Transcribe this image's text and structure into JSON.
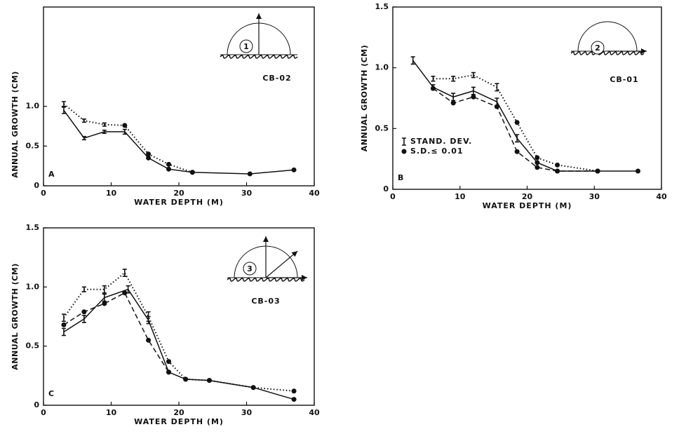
{
  "chart_data": [
    {
      "type": "line",
      "panel": "A",
      "site": "CB-02",
      "site_number": "1",
      "xlabel": "WATER DEPTH (M)",
      "ylabel": "ANNUAL GROWTH (CM)",
      "xlim": [
        0,
        40
      ],
      "xticks": [
        0,
        10,
        20,
        30,
        40
      ],
      "ylim": [
        0,
        2.25
      ],
      "yticks": [
        0,
        0.5,
        {
          "value": 1,
          "label": "1.0"
        }
      ],
      "series": [
        {
          "style": "dotted",
          "color": "#111111",
          "x": [
            3,
            6,
            9,
            12,
            15.5,
            18.5,
            22
          ],
          "values": [
            1.03,
            0.82,
            0.77,
            0.76,
            0.4,
            0.27,
            0.17
          ],
          "errors": [
            0.03,
            0.02,
            0.02,
            null,
            null,
            null,
            null
          ]
        },
        {
          "style": "solid",
          "color": "#111111",
          "x": [
            3,
            6,
            9,
            12,
            15.5,
            18.5,
            22,
            30.5,
            37
          ],
          "values": [
            0.95,
            0.6,
            0.68,
            0.68,
            0.35,
            0.21,
            0.17,
            0.15,
            0.2
          ],
          "errors": [
            0.04,
            0.02,
            0.02,
            0.03,
            null,
            null,
            null,
            null,
            null
          ]
        }
      ]
    },
    {
      "type": "line",
      "panel": "B",
      "site": "CB-01",
      "site_number": "2",
      "xlabel": "WATER DEPTH (M)",
      "ylabel": "ANNUAL GROWTH (CM)",
      "xlim": [
        0,
        40
      ],
      "xticks": [
        0,
        10,
        20,
        30,
        40
      ],
      "ylim": [
        0,
        1.5
      ],
      "yticks": [
        0,
        0.5,
        {
          "value": 1,
          "label": "1.0"
        },
        1.5
      ],
      "legend": [
        {
          "marker": "bar",
          "label": "STAND. DEV."
        },
        {
          "marker": "dot",
          "label": "S.D.≤ 0.01"
        }
      ],
      "series": [
        {
          "style": "dotted",
          "color": "#111111",
          "x": [
            6,
            9,
            12,
            15.5,
            18.5,
            21.5,
            24.5,
            30.5
          ],
          "values": [
            0.91,
            0.91,
            0.94,
            0.84,
            0.55,
            0.26,
            0.2,
            0.15
          ],
          "errors": [
            0.02,
            0.02,
            0.02,
            0.03,
            null,
            null,
            null,
            null
          ]
        },
        {
          "style": "solid",
          "color": "#111111",
          "x": [
            3,
            6,
            9,
            12,
            15.5,
            18.5,
            21.5,
            24.5,
            30.5,
            36.5
          ],
          "values": [
            1.06,
            0.84,
            0.76,
            0.81,
            0.72,
            0.42,
            0.22,
            0.15,
            0.15,
            0.15
          ],
          "errors": [
            0.03,
            0.02,
            0.03,
            0.03,
            0.03,
            0.03,
            null,
            null,
            null,
            null
          ]
        },
        {
          "style": "dashed",
          "color": "#111111",
          "x": [
            6,
            9,
            12,
            15.5,
            18.5,
            21.5,
            24.5,
            30.5
          ],
          "values": [
            0.83,
            0.71,
            0.76,
            0.68,
            0.31,
            0.18,
            0.15,
            0.15
          ],
          "errors": [
            null,
            null,
            null,
            null,
            null,
            null,
            null,
            null
          ]
        }
      ]
    },
    {
      "type": "line",
      "panel": "C",
      "site": "CB-03",
      "site_number": "3",
      "xlabel": "WATER DEPTH (M)",
      "ylabel": "ANNUAL GROWTH (CM)",
      "xlim": [
        0,
        40
      ],
      "xticks": [
        0,
        10,
        20,
        30,
        40
      ],
      "ylim": [
        0,
        1.5
      ],
      "yticks": [
        0,
        0.5,
        {
          "value": 1,
          "label": "1.0"
        },
        1.5
      ],
      "series": [
        {
          "style": "dotted",
          "color": "#111111",
          "x": [
            3,
            6,
            9,
            12,
            15.5,
            18.5,
            21,
            24.5,
            31,
            37
          ],
          "values": [
            0.74,
            0.98,
            0.98,
            1.12,
            0.75,
            0.37,
            0.22,
            0.21,
            0.15,
            0.12
          ],
          "errors": [
            0.03,
            0.02,
            0.03,
            0.03,
            0.04,
            null,
            null,
            null,
            null,
            null
          ]
        },
        {
          "style": "solid",
          "color": "#111111",
          "x": [
            3,
            6,
            9,
            12.5,
            15.5,
            18.5,
            21,
            24.5,
            31,
            37
          ],
          "values": [
            0.62,
            0.73,
            0.91,
            0.98,
            0.72,
            0.28,
            0.22,
            0.21,
            0.15,
            0.05
          ],
          "errors": [
            0.03,
            0.03,
            0.03,
            0.03,
            0.03,
            null,
            null,
            null,
            null,
            null
          ]
        },
        {
          "style": "dashed",
          "color": "#111111",
          "x": [
            3,
            6,
            9,
            12,
            15.5,
            18.5
          ],
          "values": [
            0.68,
            0.79,
            0.86,
            0.95,
            0.55,
            0.28
          ],
          "errors": [
            null,
            null,
            null,
            null,
            null,
            null
          ]
        }
      ]
    }
  ]
}
